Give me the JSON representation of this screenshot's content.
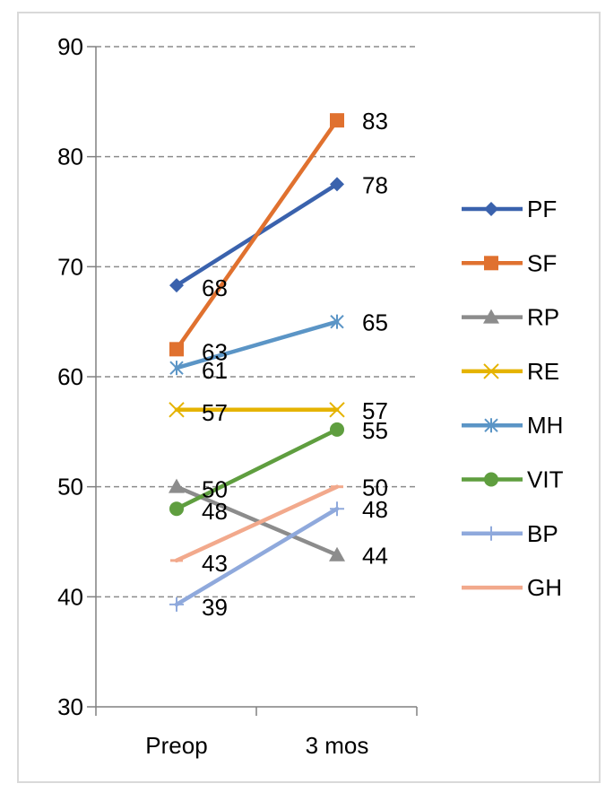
{
  "chart_data": {
    "type": "line",
    "title": "",
    "xlabel": "",
    "ylabel": "",
    "categories": [
      "Preop",
      "3 mos"
    ],
    "ylim": [
      30,
      90
    ],
    "yticks": [
      30,
      40,
      50,
      60,
      70,
      80,
      90
    ],
    "grid": true,
    "legend_position": "right",
    "series": [
      {
        "name": "PF",
        "values": [
          68.3,
          77.5
        ],
        "labels": [
          "68",
          "78"
        ],
        "color": "#3a62ad",
        "marker": "diamond"
      },
      {
        "name": "SF",
        "values": [
          62.5,
          83.3
        ],
        "labels": [
          "63",
          "83"
        ],
        "color": "#e0712f",
        "marker": "square"
      },
      {
        "name": "RP",
        "values": [
          50.0,
          43.8
        ],
        "labels": [
          "50",
          "44"
        ],
        "color": "#8c8c8c",
        "marker": "triangle"
      },
      {
        "name": "RE",
        "values": [
          57.0,
          57.0
        ],
        "labels": [
          "57",
          "57"
        ],
        "color": "#e5b300",
        "marker": "x"
      },
      {
        "name": "MH",
        "values": [
          60.8,
          65.0
        ],
        "labels": [
          "61",
          "65"
        ],
        "color": "#5b95c6",
        "marker": "asterisk"
      },
      {
        "name": "VIT",
        "values": [
          48.0,
          55.2
        ],
        "labels": [
          "48",
          "55"
        ],
        "color": "#5f9e3f",
        "marker": "circle"
      },
      {
        "name": "BP",
        "values": [
          39.3,
          48.0
        ],
        "labels": [
          "39",
          "48"
        ],
        "color": "#8fa9dc",
        "marker": "plus"
      },
      {
        "name": "GH",
        "values": [
          43.3,
          50.0
        ],
        "labels": [
          "43",
          "50"
        ],
        "color": "#f2a98c",
        "marker": "dash"
      }
    ]
  }
}
